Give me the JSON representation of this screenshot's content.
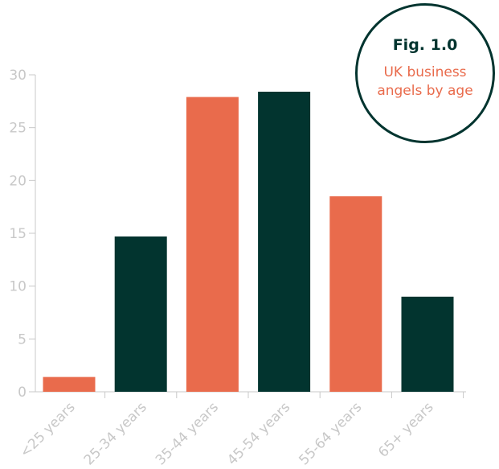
{
  "badge": {
    "figure_label": "Fig. 1.0",
    "caption": "UK business angels by age"
  },
  "colors": {
    "orange": "#e96b4c",
    "dark_green": "#02342f",
    "axis": "#c8c8c8"
  },
  "chart_data": {
    "type": "bar",
    "title": "UK business angels by age",
    "xlabel": "",
    "ylabel": "",
    "categories": [
      "<25 years",
      "25-34 years",
      "35-44 years",
      "45-54 years",
      "55-64 years",
      "65+ years"
    ],
    "values": [
      1.4,
      14.7,
      27.9,
      28.4,
      18.5,
      9.0
    ],
    "bar_colors": [
      "#e96b4c",
      "#02342f",
      "#e96b4c",
      "#02342f",
      "#e96b4c",
      "#02342f"
    ],
    "ylim": [
      0,
      30
    ],
    "yticks": [
      0,
      5,
      10,
      15,
      20,
      25,
      30
    ],
    "grid": false,
    "legend": "none"
  }
}
